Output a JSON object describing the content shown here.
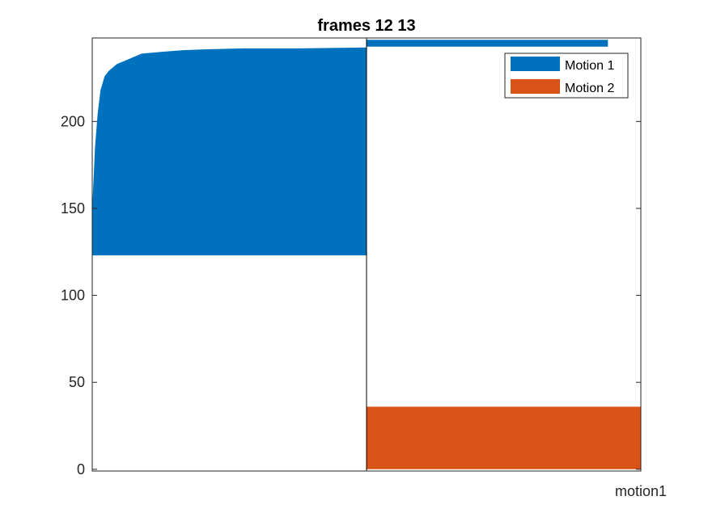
{
  "chart_data": {
    "type": "area",
    "title": "frames 12 13",
    "xlabel": "",
    "ylabel": "",
    "xlim": [
      0,
      2
    ],
    "ylim": [
      -1,
      248
    ],
    "yticks": [
      0,
      50,
      100,
      150,
      200
    ],
    "xtick_labels": [
      "motion1"
    ],
    "grid": false,
    "legend_position": "top-right",
    "series": [
      {
        "name": "Motion 1",
        "color": "#0072BD",
        "blocks": [
          {
            "x_start": 0,
            "x_end": 1,
            "bottom": 123,
            "top_profile": [
              [
                0,
                150
              ],
              [
                0.01,
                185
              ],
              [
                0.02,
                205
              ],
              [
                0.03,
                218
              ],
              [
                0.045,
                226
              ],
              [
                0.06,
                229
              ],
              [
                0.09,
                233
              ],
              [
                0.12,
                235
              ],
              [
                0.15,
                237
              ],
              [
                0.18,
                239
              ],
              [
                0.25,
                240
              ],
              [
                0.33,
                241
              ],
              [
                0.42,
                241.5
              ],
              [
                0.55,
                242
              ],
              [
                0.75,
                242
              ],
              [
                1,
                242.5
              ]
            ]
          },
          {
            "x_start": 1,
            "x_end": 1.88,
            "bottom": 243,
            "top_profile": [
              [
                1,
                247
              ],
              [
                1.88,
                247
              ]
            ]
          }
        ]
      },
      {
        "name": "Motion 2",
        "color": "#D95319",
        "blocks": [
          {
            "x_start": 1,
            "x_end": 2,
            "bottom": 0,
            "top_profile": [
              [
                1,
                36
              ],
              [
                2,
                36
              ]
            ]
          }
        ]
      }
    ]
  }
}
